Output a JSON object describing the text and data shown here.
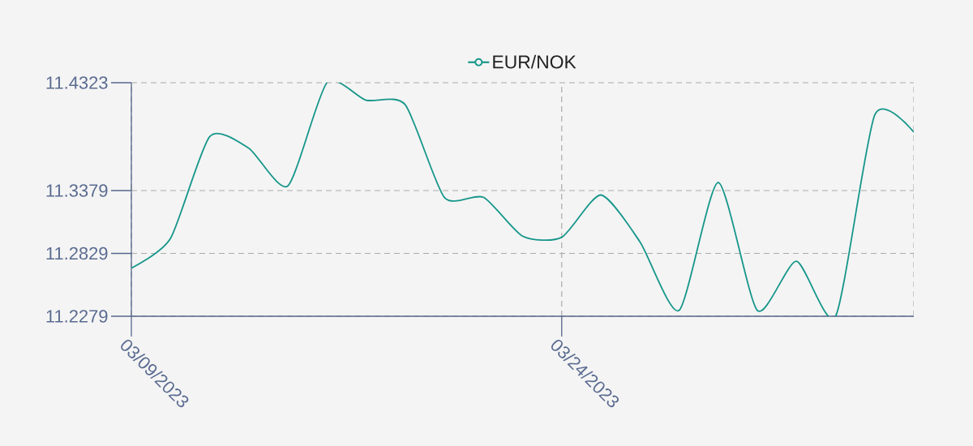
{
  "chart_data": {
    "type": "line",
    "categories": [
      "03/09/2023",
      null,
      null,
      null,
      null,
      null,
      null,
      null,
      null,
      null,
      null,
      "03/24/2023",
      null,
      null,
      null,
      null,
      null,
      null,
      null,
      null,
      null
    ],
    "series": [
      {
        "name": "EUR/NOK",
        "color": "#16968a",
        "values": [
          11.27,
          11.296,
          11.385,
          11.375,
          11.342,
          11.4323,
          11.417,
          11.413,
          11.332,
          11.332,
          11.298,
          11.297,
          11.334,
          11.293,
          11.233,
          11.345,
          11.233,
          11.276,
          11.2279,
          11.404,
          11.389
        ]
      }
    ],
    "ylim": [
      11.2279,
      11.4323
    ],
    "yticks": [
      11.2279,
      11.2829,
      11.3379,
      11.4323
    ],
    "grid": true,
    "legend": "top",
    "line_style": "solid"
  }
}
